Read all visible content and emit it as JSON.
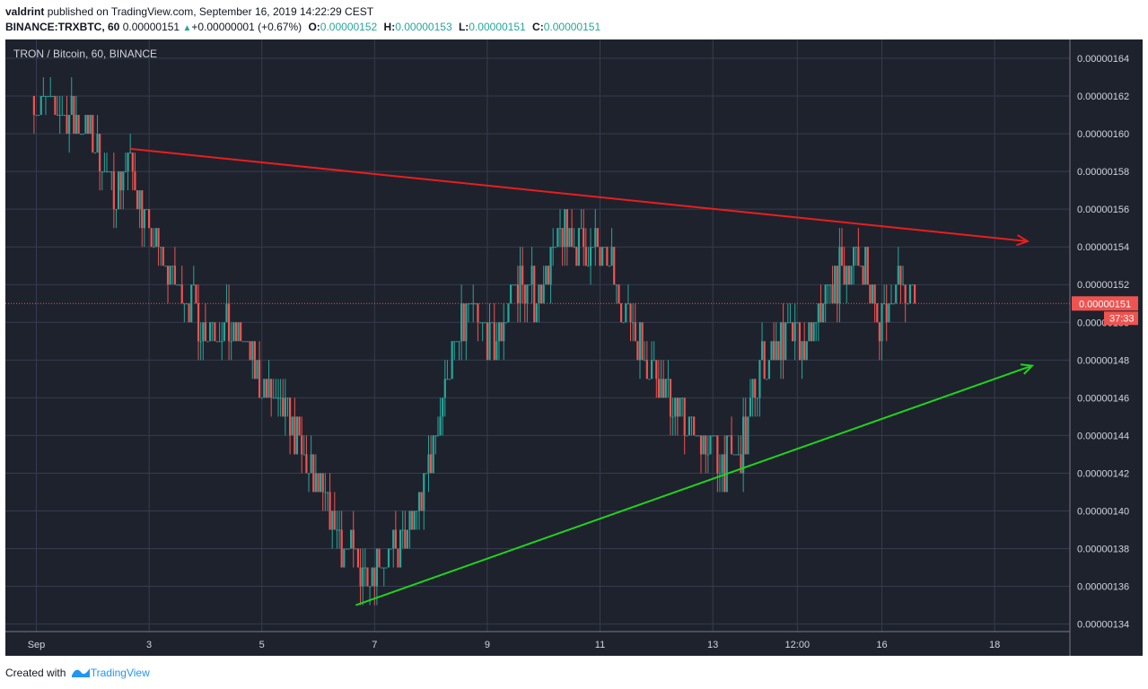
{
  "header": {
    "author": "valdrint",
    "published_text": "published on TradingView.com, September 16, 2019 14:22:29 CEST"
  },
  "ohlc": {
    "symbol": "BINANCE:TRXBTC, 60",
    "last": "0.00000151",
    "change_icon": "up-triangle-icon",
    "change": "+0.00000001 (+0.67%)",
    "o_label": "O:",
    "o": "0.00000152",
    "h_label": "H:",
    "h": "0.00000153",
    "l_label": "L:",
    "l": "0.00000151",
    "c_label": "C:",
    "c": "0.00000151"
  },
  "footer": {
    "created_with": "Created with",
    "brand": "TradingView",
    "brand_icon": "tradingview-logo-icon"
  },
  "colors": {
    "background": "#1e222d",
    "grid": "#363c4e",
    "up": "#26a69a",
    "down": "#ef5350",
    "resistance_line": "#e91e1e",
    "support_line": "#21d21e",
    "price_label": "#ef5350",
    "brand": "#2196f3"
  },
  "chart_data": {
    "type": "candlestick",
    "title": "TRON / Bitcoin, 60, BINANCE",
    "x_tick_labels": [
      "Sep",
      "3",
      "5",
      "7",
      "9",
      "11",
      "13",
      "12:00",
      "16",
      "18"
    ],
    "y_tick_labels": [
      "0.00000164",
      "0.00000162",
      "0.00000160",
      "0.00000158",
      "0.00000156",
      "0.00000154",
      "0.00000152",
      "0.00000150",
      "0.00000148",
      "0.00000146",
      "0.00000144",
      "0.00000142",
      "0.00000140",
      "0.00000138",
      "0.00000136",
      "0.00000134"
    ],
    "ylim": [
      1.336e-06,
      1.65e-06
    ],
    "y_tick_values": [
      1.64e-06,
      1.62e-06,
      1.6e-06,
      1.58e-06,
      1.56e-06,
      1.54e-06,
      1.52e-06,
      1.5e-06,
      1.48e-06,
      1.46e-06,
      1.44e-06,
      1.42e-06,
      1.4e-06,
      1.38e-06,
      1.36e-06,
      1.34e-06
    ],
    "price_path": [
      {
        "date": "Aug 31 23:00",
        "close": 1.62e-06
      },
      {
        "date": "Sep 1 12:00",
        "close": 1.61e-06
      },
      {
        "date": "Sep 2 00:00",
        "close": 1.6e-06
      },
      {
        "date": "Sep 2 08:00",
        "close": 1.57e-06
      },
      {
        "date": "Sep 2 16:00",
        "close": 1.585e-06
      },
      {
        "date": "Sep 3 00:00",
        "close": 1.545e-06
      },
      {
        "date": "Sep 3 12:00",
        "close": 1.52e-06
      },
      {
        "date": "Sep 4 00:00",
        "close": 1.5e-06
      },
      {
        "date": "Sep 4 16:00",
        "close": 1.49e-06
      },
      {
        "date": "Sep 5 00:00",
        "close": 1.465e-06
      },
      {
        "date": "Sep 5 12:00",
        "close": 1.45e-06
      },
      {
        "date": "Sep 5 20:00",
        "close": 1.42e-06
      },
      {
        "date": "Sep 6 04:00",
        "close": 1.4e-06
      },
      {
        "date": "Sep 6 12:00",
        "close": 1.38e-06
      },
      {
        "date": "Sep 6 20:00",
        "close": 1.37e-06
      },
      {
        "date": "Sep 7 08:00",
        "close": 1.375e-06
      },
      {
        "date": "Sep 7 16:00",
        "close": 1.39e-06
      },
      {
        "date": "Sep 8 00:00",
        "close": 1.43e-06
      },
      {
        "date": "Sep 8 08:00",
        "close": 1.48e-06
      },
      {
        "date": "Sep 8 16:00",
        "close": 1.505e-06
      },
      {
        "date": "Sep 9 04:00",
        "close": 1.49e-06
      },
      {
        "date": "Sep 9 12:00",
        "close": 1.52e-06
      },
      {
        "date": "Sep 9 20:00",
        "close": 1.515e-06
      },
      {
        "date": "Sep 10 08:00",
        "close": 1.545e-06
      },
      {
        "date": "Sep 10 16:00",
        "close": 1.545e-06
      },
      {
        "date": "Sep 11 04:00",
        "close": 1.53e-06
      },
      {
        "date": "Sep 11 12:00",
        "close": 1.505e-06
      },
      {
        "date": "Sep 11 20:00",
        "close": 1.48e-06
      },
      {
        "date": "Sep 12 08:00",
        "close": 1.455e-06
      },
      {
        "date": "Sep 12 16:00",
        "close": 1.44e-06
      },
      {
        "date": "Sep 13 04:00",
        "close": 1.425e-06
      },
      {
        "date": "Sep 13 12:00",
        "close": 1.43e-06
      },
      {
        "date": "Sep 13 20:00",
        "close": 1.475e-06
      },
      {
        "date": "Sep 14 08:00",
        "close": 1.495e-06
      },
      {
        "date": "Sep 14 16:00",
        "close": 1.485e-06
      },
      {
        "date": "Sep 15 00:00",
        "close": 1.515e-06
      },
      {
        "date": "Sep 15 08:00",
        "close": 1.53e-06
      },
      {
        "date": "Sep 15 16:00",
        "close": 1.535e-06
      },
      {
        "date": "Sep 15 22:00",
        "close": 1.5e-06
      },
      {
        "date": "Sep 16 06:00",
        "close": 1.52e-06
      },
      {
        "date": "Sep 16 14:00",
        "close": 1.51e-06
      }
    ],
    "trendlines": [
      {
        "color_key": "resistance_line",
        "from": {
          "date": "Sep 2 16:00",
          "price": 1.592e-06
        },
        "to": {
          "date": "Sep 18 14:00",
          "price": 1.543e-06
        },
        "arrow": true
      },
      {
        "color_key": "support_line",
        "from": {
          "date": "Sep 6 16:00",
          "price": 1.35e-06
        },
        "to": {
          "date": "Sep 18 16:00",
          "price": 1.477e-06
        },
        "arrow": true
      }
    ],
    "last_price_label": "0.00000151",
    "countdown_label": "37:33"
  }
}
